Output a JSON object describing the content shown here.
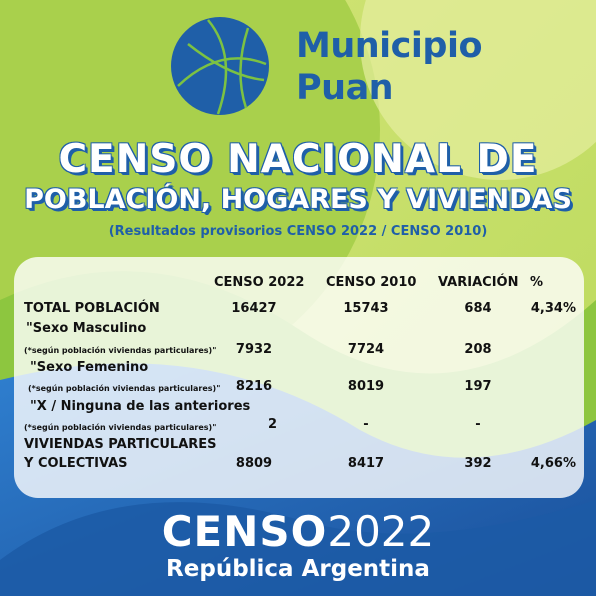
{
  "logo": {
    "line1": "Municipio",
    "line2": "Puan"
  },
  "title": {
    "line1": "CENSO NACIONAL DE",
    "line2": "POBLACIÓN, HOGARES Y VIVIENDAS"
  },
  "subtitle": "(Resultados provisorios CENSO 2022 / CENSO 2010)",
  "table": {
    "headers": [
      "CENSO 2022",
      "CENSO 2010",
      "VARIACIÓN",
      "%"
    ],
    "rows": [
      {
        "label": "TOTAL POBLACIÓN",
        "note": "",
        "c2022": "16427",
        "c2010": "15743",
        "var": "684",
        "pct": "4,34%"
      },
      {
        "label": "\"Sexo Masculino",
        "note": "(*según población viviendas particulares)\"",
        "c2022": "7932",
        "c2010": "7724",
        "var": "208",
        "pct": ""
      },
      {
        "label": "\"Sexo Femenino",
        "note": "(*según población viviendas particulares)\"",
        "c2022": "8216",
        "c2010": "8019",
        "var": "197",
        "pct": ""
      },
      {
        "label": "\"X / Ninguna de las anteriores",
        "note": "(*según población viviendas particulares)\"",
        "c2022": "2",
        "c2010": "-",
        "var": "-",
        "pct": ""
      },
      {
        "label": "VIVIENDAS PARTICULARES",
        "label2": "Y COLECTIVAS",
        "c2022": "8809",
        "c2010": "8417",
        "var": "392",
        "pct": "4,66%"
      }
    ]
  },
  "footer": {
    "censo": "CENSO",
    "year": "2022",
    "country": "República Argentina"
  },
  "colors": {
    "blue": "#1f5fa8",
    "green": "#7cc242",
    "light_green": "#c6e06a"
  }
}
